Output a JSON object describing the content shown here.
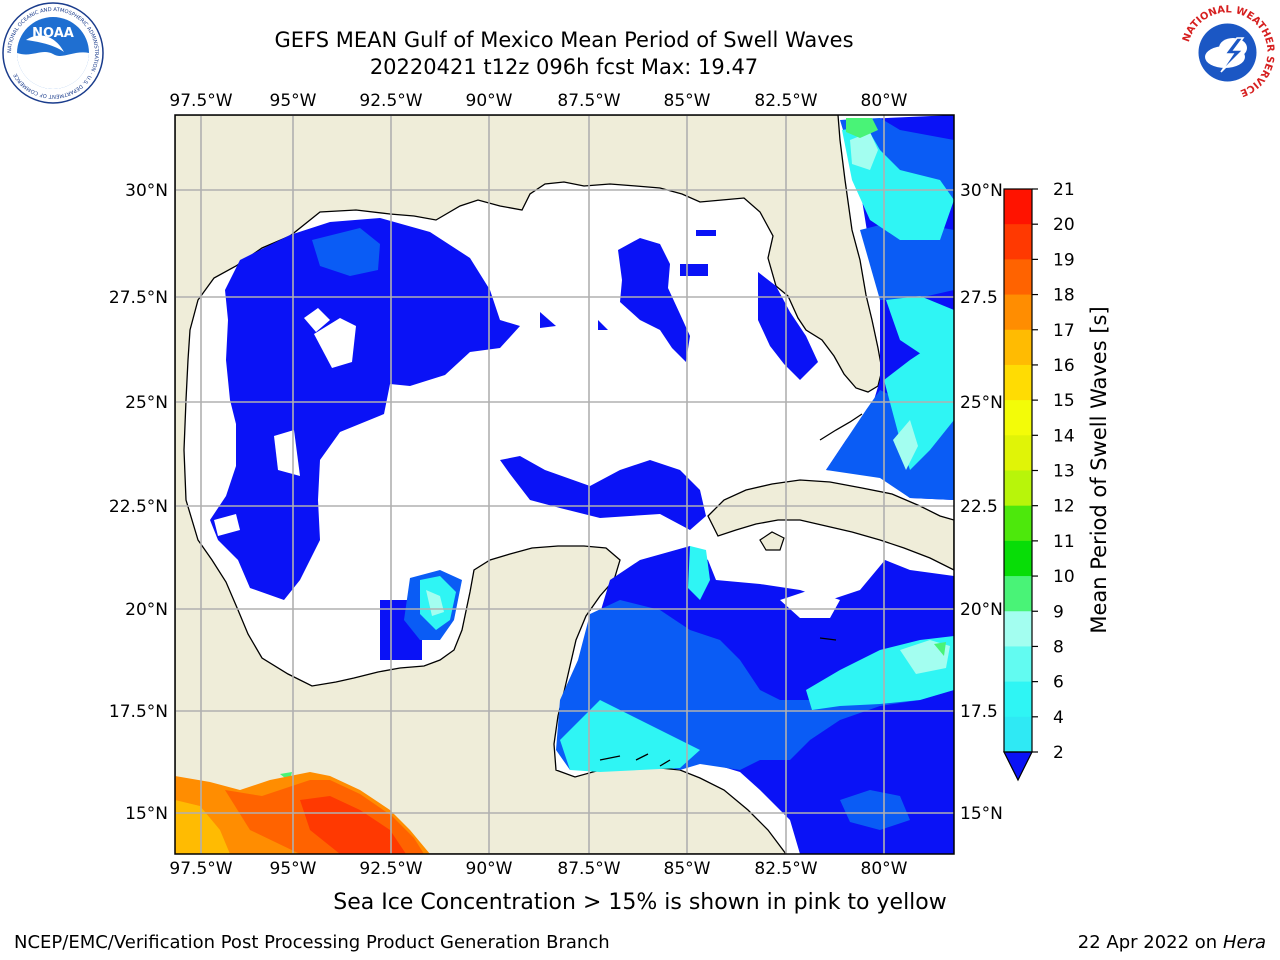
{
  "header": {
    "title": "GEFS MEAN Gulf of Mexico Mean Period of Swell Waves",
    "subtitle": "20220421 t12z 096h fcst   Max: 19.47"
  },
  "logos": {
    "noaa_text": "NOAA",
    "noaa_ring": "NATIONAL OCEANIC AND ATMOSPHERIC ADMINISTRATION · U.S. DEPARTMENT OF COMMERCE",
    "nws_ring": "NATIONAL WEATHER SERVICE"
  },
  "map": {
    "lon_labels": [
      "97.5°W",
      "95°W",
      "92.5°W",
      "90°W",
      "87.5°W",
      "85°W",
      "82.5°W",
      "80°W"
    ],
    "lat_labels_left": [
      "30°N",
      "27.5°N",
      "25°N",
      "22.5°N",
      "20°N",
      "17.5°N",
      "15°N"
    ],
    "lat_labels_right": [
      "30°N",
      "27.5",
      "25°N",
      "22.5",
      "20°N",
      "17.5",
      "15°N"
    ],
    "colors": {
      "land": "#efedd9",
      "ocean_white": "#ffffff",
      "grid": "#b0b0b0"
    }
  },
  "colorbar": {
    "label": "Mean Period of Swell Waves [s]",
    "ticks": [
      "2",
      "4",
      "6",
      "8",
      "9",
      "10",
      "11",
      "12",
      "13",
      "14",
      "15",
      "16",
      "17",
      "18",
      "19",
      "20",
      "21"
    ],
    "colors": [
      "#0a5cf5",
      "#2fe9f4",
      "#2ff5f4",
      "#62fbf1",
      "#a3fef0",
      "#49f377",
      "#08dd07",
      "#4de80c",
      "#b8f50a",
      "#e0f407",
      "#f3fc08",
      "#ffdc03",
      "#ffbb02",
      "#ff8d01",
      "#ff6300",
      "#ff3901",
      "#ff1300"
    ],
    "under_color": "#0a12f6"
  },
  "footer": {
    "ice_note": "Sea Ice Concentration > 15% is shown in pink to yellow",
    "credit": "NCEP/EMC/Verification Post Processing Product Generation Branch",
    "date_prefix": "22 Apr 2022 on ",
    "machine": "Hera"
  }
}
